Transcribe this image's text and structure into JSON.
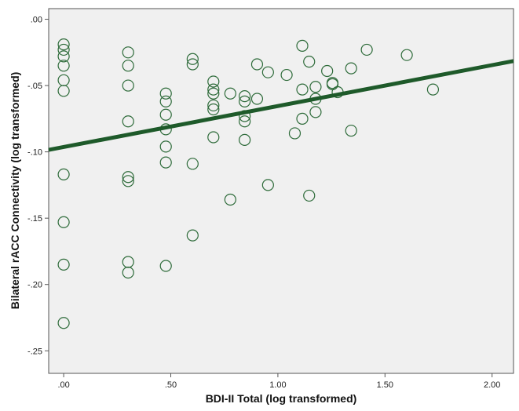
{
  "chart_data": {
    "type": "scatter",
    "xlabel": "BDI-II Total (log transformed)",
    "ylabel": "Bilateral rACC Connectivity (log transformed)",
    "xlim": [
      -0.07,
      2.1
    ],
    "ylim": [
      -0.267,
      0.008
    ],
    "x_ticks": [
      0,
      0.5,
      1.0,
      1.5,
      2.0
    ],
    "x_tick_labels": [
      ".00",
      ".50",
      "1.00",
      "1.50",
      "2.00"
    ],
    "y_ticks": [
      0,
      -0.05,
      -0.1,
      -0.15,
      -0.2,
      -0.25
    ],
    "y_tick_labels": [
      ".00",
      "-.05",
      "-.10",
      "-.15",
      "-.20",
      "-.25"
    ],
    "grid": false,
    "plot_background": "#f0f0f0",
    "marker_color": "#2e6b3a",
    "fit_line_color": "#1e5a2a",
    "fit_line": {
      "x": [
        -0.07,
        2.1
      ],
      "y": [
        -0.0985,
        -0.0315
      ]
    },
    "points": [
      {
        "x": 0.0,
        "y": -0.019
      },
      {
        "x": 0.0,
        "y": -0.023
      },
      {
        "x": 0.0,
        "y": -0.028
      },
      {
        "x": 0.0,
        "y": -0.035
      },
      {
        "x": 0.0,
        "y": -0.046
      },
      {
        "x": 0.0,
        "y": -0.054
      },
      {
        "x": 0.0,
        "y": -0.117
      },
      {
        "x": 0.0,
        "y": -0.153
      },
      {
        "x": 0.0,
        "y": -0.185
      },
      {
        "x": 0.0,
        "y": -0.229
      },
      {
        "x": 0.301,
        "y": -0.025
      },
      {
        "x": 0.301,
        "y": -0.035
      },
      {
        "x": 0.301,
        "y": -0.05
      },
      {
        "x": 0.301,
        "y": -0.077
      },
      {
        "x": 0.301,
        "y": -0.119
      },
      {
        "x": 0.301,
        "y": -0.122
      },
      {
        "x": 0.301,
        "y": -0.183
      },
      {
        "x": 0.301,
        "y": -0.191
      },
      {
        "x": 0.477,
        "y": -0.056
      },
      {
        "x": 0.477,
        "y": -0.062
      },
      {
        "x": 0.477,
        "y": -0.072
      },
      {
        "x": 0.477,
        "y": -0.083
      },
      {
        "x": 0.477,
        "y": -0.096
      },
      {
        "x": 0.477,
        "y": -0.108
      },
      {
        "x": 0.477,
        "y": -0.186
      },
      {
        "x": 0.602,
        "y": -0.03
      },
      {
        "x": 0.602,
        "y": -0.034
      },
      {
        "x": 0.602,
        "y": -0.109
      },
      {
        "x": 0.602,
        "y": -0.163
      },
      {
        "x": 0.699,
        "y": -0.047
      },
      {
        "x": 0.699,
        "y": -0.053
      },
      {
        "x": 0.699,
        "y": -0.056
      },
      {
        "x": 0.699,
        "y": -0.065
      },
      {
        "x": 0.699,
        "y": -0.068
      },
      {
        "x": 0.699,
        "y": -0.089
      },
      {
        "x": 0.778,
        "y": -0.056
      },
      {
        "x": 0.778,
        "y": -0.136
      },
      {
        "x": 0.845,
        "y": -0.058
      },
      {
        "x": 0.845,
        "y": -0.062
      },
      {
        "x": 0.845,
        "y": -0.073
      },
      {
        "x": 0.845,
        "y": -0.077
      },
      {
        "x": 0.845,
        "y": -0.091
      },
      {
        "x": 0.903,
        "y": -0.034
      },
      {
        "x": 0.903,
        "y": -0.06
      },
      {
        "x": 0.954,
        "y": -0.04
      },
      {
        "x": 0.954,
        "y": -0.125
      },
      {
        "x": 1.041,
        "y": -0.042
      },
      {
        "x": 1.079,
        "y": -0.086
      },
      {
        "x": 1.114,
        "y": -0.02
      },
      {
        "x": 1.114,
        "y": -0.053
      },
      {
        "x": 1.114,
        "y": -0.075
      },
      {
        "x": 1.146,
        "y": -0.032
      },
      {
        "x": 1.146,
        "y": -0.133
      },
      {
        "x": 1.176,
        "y": -0.051
      },
      {
        "x": 1.176,
        "y": -0.06
      },
      {
        "x": 1.176,
        "y": -0.07
      },
      {
        "x": 1.23,
        "y": -0.039
      },
      {
        "x": 1.255,
        "y": -0.048
      },
      {
        "x": 1.255,
        "y": -0.049
      },
      {
        "x": 1.279,
        "y": -0.055
      },
      {
        "x": 1.342,
        "y": -0.037
      },
      {
        "x": 1.342,
        "y": -0.084
      },
      {
        "x": 1.415,
        "y": -0.023
      },
      {
        "x": 1.602,
        "y": -0.027
      },
      {
        "x": 1.724,
        "y": -0.053
      }
    ]
  }
}
